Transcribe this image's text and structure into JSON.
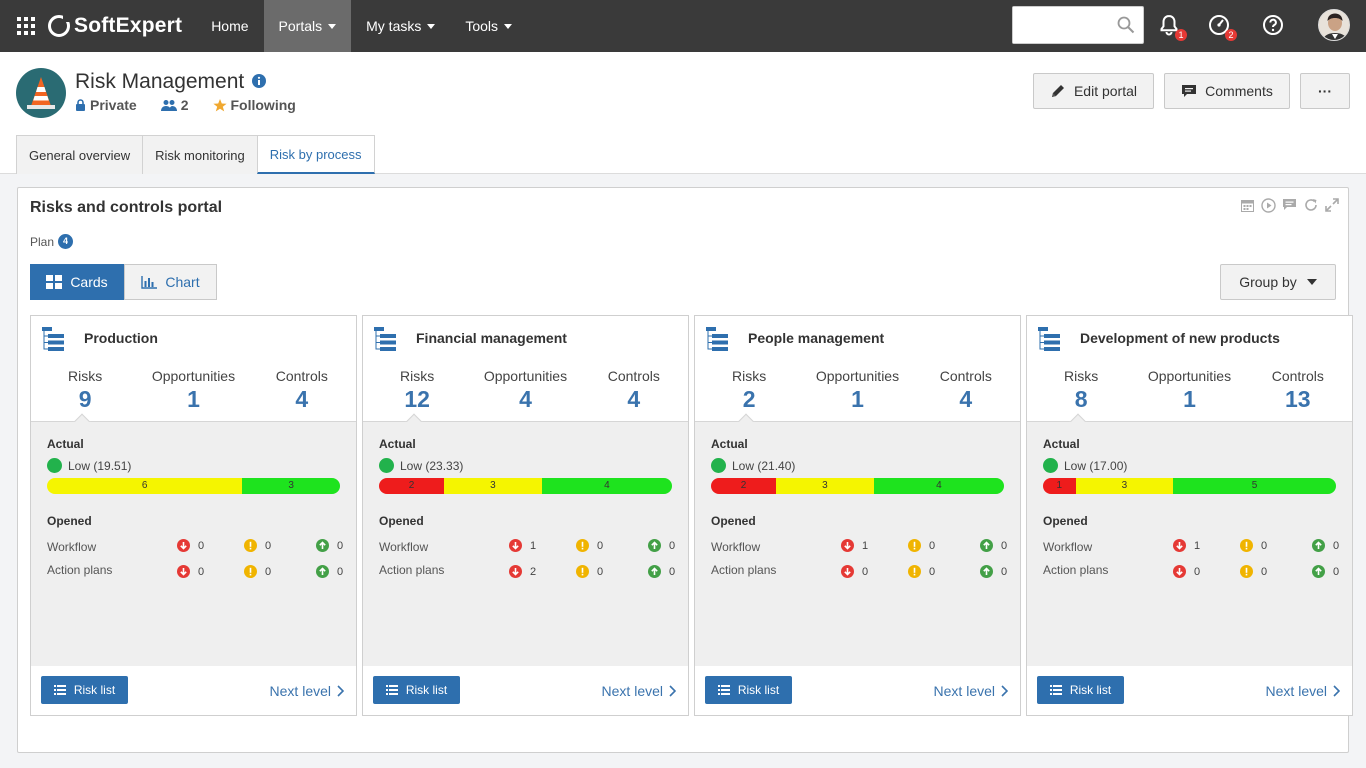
{
  "topbar": {
    "brand": "SoftExpert",
    "nav": [
      {
        "label": "Home",
        "dropdown": false,
        "active": false
      },
      {
        "label": "Portals",
        "dropdown": true,
        "active": true
      },
      {
        "label": "My tasks",
        "dropdown": true,
        "active": false
      },
      {
        "label": "Tools",
        "dropdown": true,
        "active": false
      }
    ],
    "search_placeholder": "",
    "notifications_count": "1",
    "tasks_count": "2"
  },
  "portal": {
    "title": "Risk Management",
    "privacy": "Private",
    "members": "2",
    "following": "Following",
    "edit_label": "Edit portal",
    "comments_label": "Comments",
    "more_label": "···"
  },
  "tabs": [
    {
      "label": "General overview",
      "active": false
    },
    {
      "label": "Risk monitoring",
      "active": false
    },
    {
      "label": "Risk by process",
      "active": true
    }
  ],
  "widget": {
    "title": "Risks and controls portal",
    "plan_label": "Plan",
    "plan_count": "4",
    "cards_label": "Cards",
    "chart_label": "Chart",
    "groupby_label": "Group by"
  },
  "labels": {
    "risks": "Risks",
    "opportunities": "Opportunities",
    "controls": "Controls",
    "actual": "Actual",
    "opened": "Opened",
    "workflow": "Workflow",
    "action_plans": "Action plans",
    "risk_list": "Risk list",
    "next_level": "Next level"
  },
  "colors": {
    "accent": "#2e6fae",
    "red": "#ee1c1c",
    "yellow": "#f5f500",
    "green": "#1ee31e",
    "status_low": "#22b24c"
  },
  "cards": [
    {
      "title": "Production",
      "risks": "9",
      "opportunities": "1",
      "controls": "4",
      "actual_status": "Low (19.51)",
      "bar": {
        "red": 0,
        "yellow": 6,
        "green": 3
      },
      "bar_labels": {
        "red": "",
        "yellow": "6",
        "green": "3"
      },
      "workflow": {
        "down": "0",
        "warn": "0",
        "up": "0"
      },
      "action_plans": {
        "down": "0",
        "warn": "0",
        "up": "0"
      }
    },
    {
      "title": "Financial management",
      "risks": "12",
      "opportunities": "4",
      "controls": "4",
      "actual_status": "Low (23.33)",
      "bar": {
        "red": 2,
        "yellow": 3,
        "green": 4
      },
      "bar_labels": {
        "red": "2",
        "yellow": "3",
        "green": "4"
      },
      "workflow": {
        "down": "1",
        "warn": "0",
        "up": "0"
      },
      "action_plans": {
        "down": "2",
        "warn": "0",
        "up": "0"
      }
    },
    {
      "title": "People management",
      "risks": "2",
      "opportunities": "1",
      "controls": "4",
      "actual_status": "Low (21.40)",
      "bar": {
        "red": 2,
        "yellow": 3,
        "green": 4
      },
      "bar_labels": {
        "red": "2",
        "yellow": "3",
        "green": "4"
      },
      "workflow": {
        "down": "1",
        "warn": "0",
        "up": "0"
      },
      "action_plans": {
        "down": "0",
        "warn": "0",
        "up": "0"
      }
    },
    {
      "title": "Development of new products",
      "risks": "8",
      "opportunities": "1",
      "controls": "13",
      "actual_status": "Low (17.00)",
      "bar": {
        "red": 1,
        "yellow": 3,
        "green": 5
      },
      "bar_labels": {
        "red": "1",
        "yellow": "3",
        "green": "5"
      },
      "workflow": {
        "down": "1",
        "warn": "0",
        "up": "0"
      },
      "action_plans": {
        "down": "0",
        "warn": "0",
        "up": "0"
      }
    }
  ]
}
